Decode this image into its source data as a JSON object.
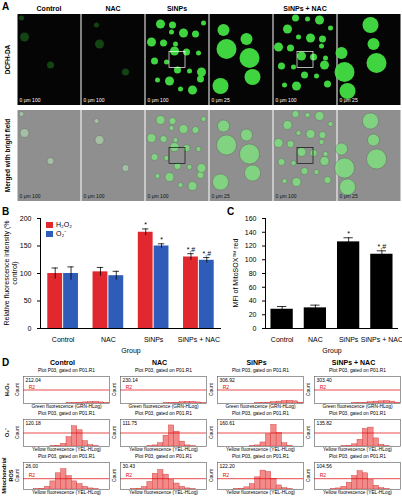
{
  "images": {
    "panel_label": "A",
    "rows": [
      "DCFH-DA",
      "Merged with bright field"
    ],
    "columns": [
      {
        "header": "Control",
        "scale_label": "0 μm 100"
      },
      {
        "header": "NAC",
        "scale_label": "0 μm 100"
      },
      {
        "header": "SiNPs",
        "scale_label": "0 μm 100"
      },
      {
        "header": null,
        "scale_label": "0 μm 25"
      },
      {
        "header": "SiNPs + NAC",
        "scale_label": "0 μm 100"
      },
      {
        "header": null,
        "scale_label": "0 μm 25"
      }
    ]
  },
  "chart_data": [
    {
      "panel_label": "B",
      "type": "bar",
      "categories": [
        "Control",
        "NAC",
        "SiNPs",
        "SiNPs + NAC"
      ],
      "series": [
        {
          "name": "H₂O₂",
          "color": "#e0282e",
          "values": [
            100,
            103,
            175,
            130
          ],
          "errors": [
            10,
            8,
            6,
            6
          ],
          "annotations": [
            null,
            null,
            "*",
            "*,#"
          ]
        },
        {
          "name": "O₂⁻",
          "color": "#2f5cb8",
          "values": [
            100,
            96,
            150,
            124
          ],
          "errors": [
            12,
            8,
            4,
            5
          ],
          "annotations": [
            null,
            null,
            "*",
            "*,#"
          ]
        }
      ],
      "xlabel": "Group",
      "ylabel": "Relative fluorescence intensity (% control)",
      "ylim": [
        0,
        200
      ],
      "yticks": [
        0,
        50,
        100,
        150,
        200
      ],
      "legend": "top-left"
    },
    {
      "panel_label": "C",
      "type": "bar",
      "categories": [
        "Control",
        "NAC",
        "SiNPs",
        "SiNPs + NAC"
      ],
      "values": [
        28,
        30,
        126,
        108
      ],
      "errors": [
        4,
        4,
        6,
        5
      ],
      "annotations": [
        null,
        null,
        "*",
        "*,#"
      ],
      "color": "#000000",
      "xlabel": "Group",
      "ylabel": "MFI of MitoSOX™ red",
      "ylim": [
        0,
        160
      ],
      "yticks": [
        0,
        20,
        40,
        60,
        80,
        100,
        120,
        140,
        160
      ]
    }
  ],
  "histogram_grid": {
    "panel_label": "D",
    "columns": [
      "Control",
      "NAC",
      "SiNPs",
      "SiNPs + NAC"
    ],
    "rows": [
      "H₂O₂",
      "O₂⁻",
      "Mitochondrial ROS"
    ],
    "cells": [
      [
        {
          "type": "histogram",
          "title": "Plot P03, gated on P01.R1",
          "stat": 212.04,
          "bins": [
            0,
            1,
            2,
            3,
            4,
            5,
            6,
            7,
            8,
            9,
            10,
            11,
            12,
            13,
            14,
            15,
            16
          ],
          "values": [
            0,
            0,
            0,
            0,
            0,
            0,
            0,
            0,
            1,
            2,
            3,
            4,
            5,
            6,
            4,
            1
          ],
          "xlabel": "Green fluorescence (GRN-HLog)",
          "ylabel": "Count",
          "xlim": [
            0,
            16
          ],
          "ylim": [
            0,
            100
          ],
          "tick_labels": false,
          "color": "#f28a8a",
          "gate": {
            "value": 50,
            "label": "R2"
          }
        },
        {
          "type": "histogram",
          "title": "Plot P03, gated on P01.R1",
          "stat": 230.14,
          "bins": [
            0,
            1,
            2,
            3,
            4,
            5,
            6,
            7,
            8,
            9,
            10,
            11,
            12,
            13,
            14,
            15,
            16
          ],
          "values": [
            0,
            0,
            0,
            0,
            0,
            0,
            0,
            0,
            1,
            2,
            3,
            5,
            6,
            6,
            4,
            1
          ],
          "xlabel": "Green fluorescence (GRN-HLog)",
          "ylabel": "Count",
          "xlim": [
            0,
            16
          ],
          "ylim": [
            0,
            100
          ],
          "tick_labels": false,
          "color": "#f28a8a",
          "gate": {
            "value": 50,
            "label": "R2"
          }
        },
        {
          "type": "histogram",
          "title": "Plot P03, gated on P01.R1",
          "stat": 306.92,
          "bins": [
            0,
            1,
            2,
            3,
            4,
            5,
            6,
            7,
            8,
            9,
            10,
            11,
            12,
            13,
            14,
            15,
            16
          ],
          "values": [
            0,
            0,
            0,
            0,
            0,
            0,
            0,
            1,
            2,
            3,
            5,
            7,
            9,
            10,
            8,
            3
          ],
          "xlabel": "Green fluorescence (GRN-HLog)",
          "ylabel": "Count",
          "xlim": [
            0,
            16
          ],
          "ylim": [
            0,
            100
          ],
          "tick_labels": false,
          "color": "#f28a8a",
          "gate": {
            "value": 50,
            "label": "R2"
          }
        },
        {
          "type": "histogram",
          "title": "Plot P03, gated on P01.R1",
          "stat": {
            "value": 303.4,
            "label": "303.40"
          },
          "bins": [
            0,
            1,
            2,
            3,
            4,
            5,
            6,
            7,
            8,
            9,
            10,
            11,
            12,
            13,
            14,
            15,
            16
          ],
          "values": [
            0,
            0,
            0,
            0,
            0,
            0,
            0,
            1,
            2,
            3,
            5,
            7,
            8,
            9,
            7,
            2
          ],
          "xlabel": "Green fluorescence (GRN-HLog)",
          "ylabel": "Count",
          "xlim": [
            0,
            16
          ],
          "ylim": [
            0,
            100
          ],
          "tick_labels": false,
          "color": "#f28a8a",
          "gate": {
            "value": 50,
            "label": "R2"
          }
        }
      ],
      [
        {
          "type": "histogram",
          "title": "Plot P03, gated on P01.R1",
          "stat": 120.18,
          "bins": [
            0,
            1,
            2,
            3,
            4,
            5,
            6,
            7,
            8,
            9,
            10,
            11,
            12,
            13,
            14,
            15,
            16
          ],
          "values": [
            0,
            0,
            0,
            0,
            0,
            1,
            3,
            10,
            35,
            75,
            60,
            20,
            5,
            1,
            0,
            0
          ],
          "xlabel": "Yellow fluorescence (YEL-HLog)",
          "ylabel": "Count",
          "xlim": [
            0,
            16
          ],
          "ylim": [
            0,
            100
          ],
          "tick_labels": false,
          "color": "#f28a8a",
          "gate": {
            "value": 50
          }
        },
        {
          "type": "histogram",
          "title": "Plot P03, gated on P01.R1",
          "stat": 111.75,
          "bins": [
            0,
            1,
            2,
            3,
            4,
            5,
            6,
            7,
            8,
            9,
            10,
            11,
            12,
            13,
            14,
            15,
            16
          ],
          "values": [
            0,
            0,
            0,
            0,
            0,
            1,
            4,
            12,
            40,
            78,
            55,
            18,
            4,
            1,
            0,
            0
          ],
          "xlabel": "Yellow fluorescence (YEL-HLog)",
          "ylabel": "Count",
          "xlim": [
            0,
            16
          ],
          "ylim": [
            0,
            100
          ],
          "tick_labels": false,
          "color": "#f28a8a",
          "gate": {
            "value": 50
          }
        },
        {
          "type": "histogram",
          "title": "Plot P03, gated on P01.R1",
          "stat": 160.61,
          "bins": [
            0,
            1,
            2,
            3,
            4,
            5,
            6,
            7,
            8,
            9,
            10,
            11,
            12,
            13,
            14,
            15,
            16
          ],
          "values": [
            0,
            0,
            0,
            0,
            0,
            0,
            1,
            4,
            15,
            45,
            80,
            50,
            12,
            2,
            0,
            0
          ],
          "xlabel": "Yellow fluorescence (YEL-HLog)",
          "ylabel": "Count",
          "xlim": [
            0,
            16
          ],
          "ylim": [
            0,
            100
          ],
          "tick_labels": false,
          "color": "#f28a8a",
          "gate": {
            "value": 50
          }
        },
        {
          "type": "histogram",
          "title": "Plot P03, gated on P01.R1",
          "stat": 135.82,
          "bins": [
            0,
            1,
            2,
            3,
            4,
            5,
            6,
            7,
            8,
            9,
            10,
            11,
            12,
            13,
            14,
            15,
            16
          ],
          "values": [
            0,
            0,
            0,
            0,
            0,
            1,
            2,
            8,
            25,
            65,
            70,
            30,
            6,
            1,
            0,
            0
          ],
          "xlabel": "Yellow fluorescence (YEL-HLog)",
          "ylabel": "Count",
          "xlim": [
            0,
            16
          ],
          "ylim": [
            0,
            100
          ],
          "tick_labels": false,
          "color": "#f28a8a",
          "gate": {
            "value": 50
          }
        }
      ],
      [
        {
          "type": "histogram",
          "title": "Plot P03, gated on P01.R1",
          "stat": {
            "value": 26,
            "label": "26.00"
          },
          "bins": [
            0,
            1,
            2,
            3,
            4,
            5,
            6,
            7,
            8,
            9,
            10,
            11,
            12,
            13,
            14,
            15,
            16
          ],
          "values": [
            0,
            0,
            1,
            3,
            10,
            30,
            60,
            75,
            50,
            30,
            20,
            10,
            4,
            1,
            0,
            0
          ],
          "xlabel": "Yellow fluorescence (YEL-HLog)",
          "ylabel": "Count",
          "xlim": [
            0,
            16
          ],
          "ylim": [
            0,
            100
          ],
          "tick_labels": false,
          "color": "#f28a8a",
          "gate": {
            "value": 40,
            "label": "R2"
          }
        },
        {
          "type": "histogram",
          "title": "Plot P03, gated on P01.R1",
          "stat": 30.43,
          "bins": [
            0,
            1,
            2,
            3,
            4,
            5,
            6,
            7,
            8,
            9,
            10,
            11,
            12,
            13,
            14,
            15,
            16
          ],
          "values": [
            0,
            0,
            1,
            3,
            9,
            28,
            58,
            72,
            55,
            35,
            22,
            10,
            4,
            1,
            0,
            0
          ],
          "xlabel": "Yellow fluorescence (YEL-HLog)",
          "ylabel": "Count",
          "xlim": [
            0,
            16
          ],
          "ylim": [
            0,
            100
          ],
          "tick_labels": false,
          "color": "#f28a8a",
          "gate": {
            "value": 40,
            "label": "R2"
          }
        },
        {
          "type": "histogram",
          "title": "Plot P03, gated on P01.R1",
          "stat": {
            "value": 122.2,
            "label": "122.20"
          },
          "bins": [
            0,
            1,
            2,
            3,
            4,
            5,
            6,
            7,
            8,
            9,
            10,
            11,
            12,
            13,
            14,
            15,
            16
          ],
          "values": [
            0,
            0,
            0,
            1,
            3,
            8,
            20,
            45,
            70,
            65,
            40,
            15,
            5,
            1,
            0,
            0
          ],
          "xlabel": "Yellow fluorescence (YEL-HLog)",
          "ylabel": "Count",
          "xlim": [
            0,
            16
          ],
          "ylim": [
            0,
            100
          ],
          "tick_labels": false,
          "color": "#f28a8a",
          "gate": {
            "value": 40,
            "label": "R2"
          }
        },
        {
          "type": "histogram",
          "title": "Plot P03, gated on P01.R1",
          "stat": 104.56,
          "bins": [
            0,
            1,
            2,
            3,
            4,
            5,
            6,
            7,
            8,
            9,
            10,
            11,
            12,
            13,
            14,
            15,
            16
          ],
          "values": [
            0,
            0,
            0,
            1,
            4,
            10,
            25,
            50,
            68,
            60,
            35,
            14,
            5,
            1,
            0,
            0
          ],
          "xlabel": "Yellow fluorescence (YEL-HLog)",
          "ylabel": "Count",
          "xlim": [
            0,
            16
          ],
          "ylim": [
            0,
            100
          ],
          "tick_labels": false,
          "color": "#f28a8a",
          "gate": {
            "value": 40,
            "label": "R2"
          }
        }
      ]
    ]
  }
}
